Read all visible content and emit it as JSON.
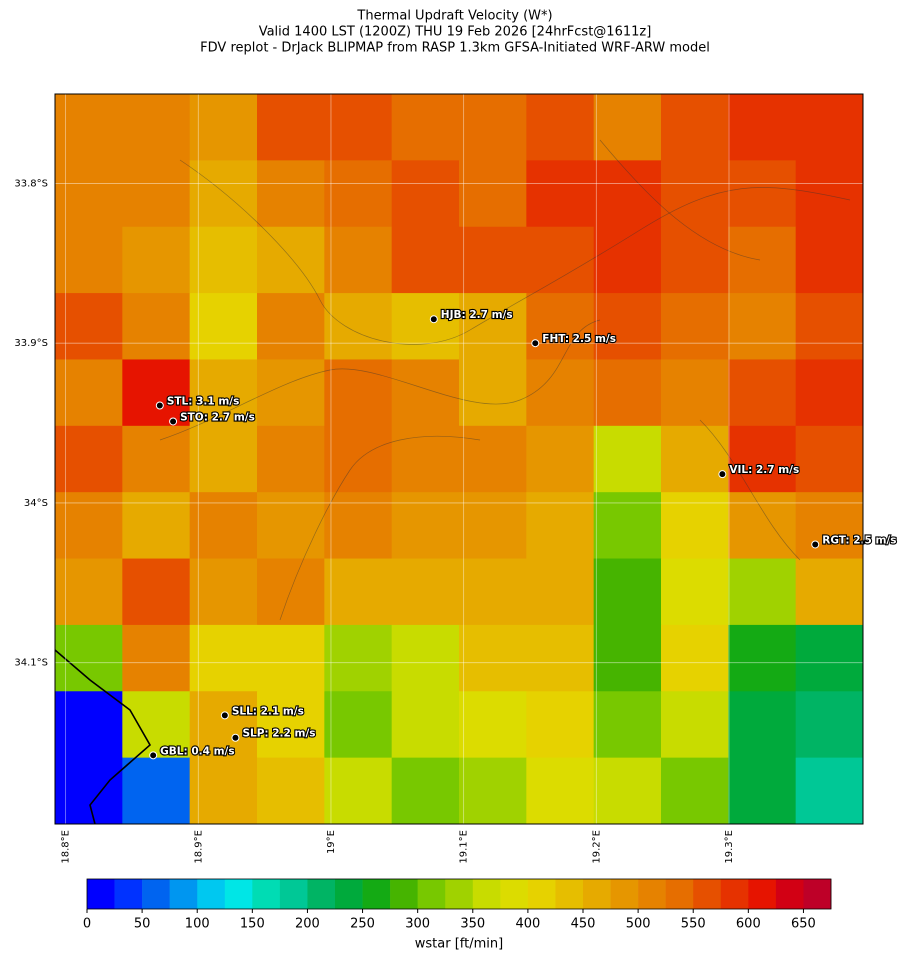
{
  "chart_data": {
    "type": "heatmap",
    "title": [
      "Thermal Updraft Velocity (W*)",
      "Valid 1400 LST (1200Z) THU 19 Feb 2026 [24hrFcst@1611z]",
      "FDV replot - DrJack BLIPMAP from RASP 1.3km GFSA-Initiated WRF-ARW model"
    ],
    "xlim": [
      18.792,
      19.401
    ],
    "ylim": [
      -34.201,
      -33.744
    ],
    "xticks": [
      {
        "value": 18.8,
        "label": "18.8°E"
      },
      {
        "value": 18.9,
        "label": "18.9°E"
      },
      {
        "value": 19.0,
        "label": "19°E"
      },
      {
        "value": 19.1,
        "label": "19.1°E"
      },
      {
        "value": 19.2,
        "label": "19.2°E"
      },
      {
        "value": 19.3,
        "label": "19.3°E"
      }
    ],
    "yticks": [
      {
        "value": -33.8,
        "label": "33.8°S"
      },
      {
        "value": -33.9,
        "label": "33.9°S"
      },
      {
        "value": -34.0,
        "label": "34°S"
      },
      {
        "value": -34.1,
        "label": "34.1°S"
      }
    ],
    "grid": true,
    "values": [
      [
        500,
        500,
        480,
        560,
        560,
        540,
        540,
        560,
        520,
        560,
        580,
        580
      ],
      [
        500,
        500,
        470,
        520,
        530,
        560,
        540,
        580,
        580,
        560,
        560,
        580
      ],
      [
        500,
        480,
        440,
        470,
        500,
        560,
        550,
        560,
        580,
        560,
        540,
        580
      ],
      [
        550,
        520,
        420,
        500,
        450,
        440,
        470,
        540,
        560,
        530,
        520,
        560
      ],
      [
        520,
        600,
        470,
        480,
        540,
        520,
        470,
        500,
        540,
        520,
        560,
        580
      ],
      [
        560,
        520,
        470,
        520,
        540,
        520,
        500,
        480,
        360,
        450,
        580,
        560
      ],
      [
        500,
        450,
        500,
        480,
        500,
        490,
        480,
        470,
        300,
        400,
        490,
        520
      ],
      [
        480,
        560,
        480,
        500,
        470,
        460,
        470,
        450,
        280,
        380,
        330,
        470
      ],
      [
        300,
        520,
        400,
        420,
        330,
        350,
        440,
        430,
        280,
        400,
        270,
        240
      ],
      [
        0,
        350,
        450,
        420,
        300,
        360,
        380,
        420,
        310,
        350,
        230,
        200
      ],
      [
        0,
        60,
        460,
        430,
        370,
        300,
        330,
        380,
        350,
        300,
        230,
        190
      ]
    ],
    "stations": [
      {
        "label": "HJB: 2.7 m/s",
        "lon": 19.0775,
        "lat": -33.885
      },
      {
        "label": "FHT: 2.5 m/s",
        "lon": 19.154,
        "lat": -33.9
      },
      {
        "label": "STL: 3.1 m/s",
        "lon": 18.871,
        "lat": -33.939
      },
      {
        "label": "STO: 2.7 m/s",
        "lon": 18.881,
        "lat": -33.949
      },
      {
        "label": "VIL: 2.7 m/s",
        "lon": 19.295,
        "lat": -33.982
      },
      {
        "label": "RGT: 2.5 m/s",
        "lon": 19.365,
        "lat": -34.026
      },
      {
        "label": "SLL: 2.1 m/s",
        "lon": 18.92,
        "lat": -34.133
      },
      {
        "label": "SLP: 2.2 m/s",
        "lon": 18.928,
        "lat": -34.147
      },
      {
        "label": "GBL: 0.4 m/s",
        "lon": 18.866,
        "lat": -34.158
      }
    ],
    "colorbar": {
      "label": "wstar [ft/min]",
      "lim": [
        0,
        675
      ],
      "ticks": [
        0,
        50,
        100,
        150,
        200,
        250,
        300,
        350,
        400,
        450,
        500,
        550,
        600,
        650
      ],
      "bounds": [
        0,
        25,
        50,
        75,
        100,
        125,
        150,
        175,
        200,
        225,
        250,
        275,
        300,
        325,
        350,
        375,
        400,
        425,
        450,
        475,
        500,
        525,
        550,
        575,
        600,
        625,
        650,
        675
      ],
      "colors": [
        "#0000ff",
        "#0032ff",
        "#0064f0",
        "#0096f0",
        "#00c8f0",
        "#00e6e6",
        "#00dcb4",
        "#00c896",
        "#00b464",
        "#00aa3c",
        "#14aa14",
        "#46b400",
        "#78c800",
        "#a0d200",
        "#c8dc00",
        "#dcdc00",
        "#e6d200",
        "#e6be00",
        "#e6aa00",
        "#e69600",
        "#e68200",
        "#e66e00",
        "#e65000",
        "#e63200",
        "#e61400",
        "#d20014",
        "#be0028"
      ]
    }
  }
}
